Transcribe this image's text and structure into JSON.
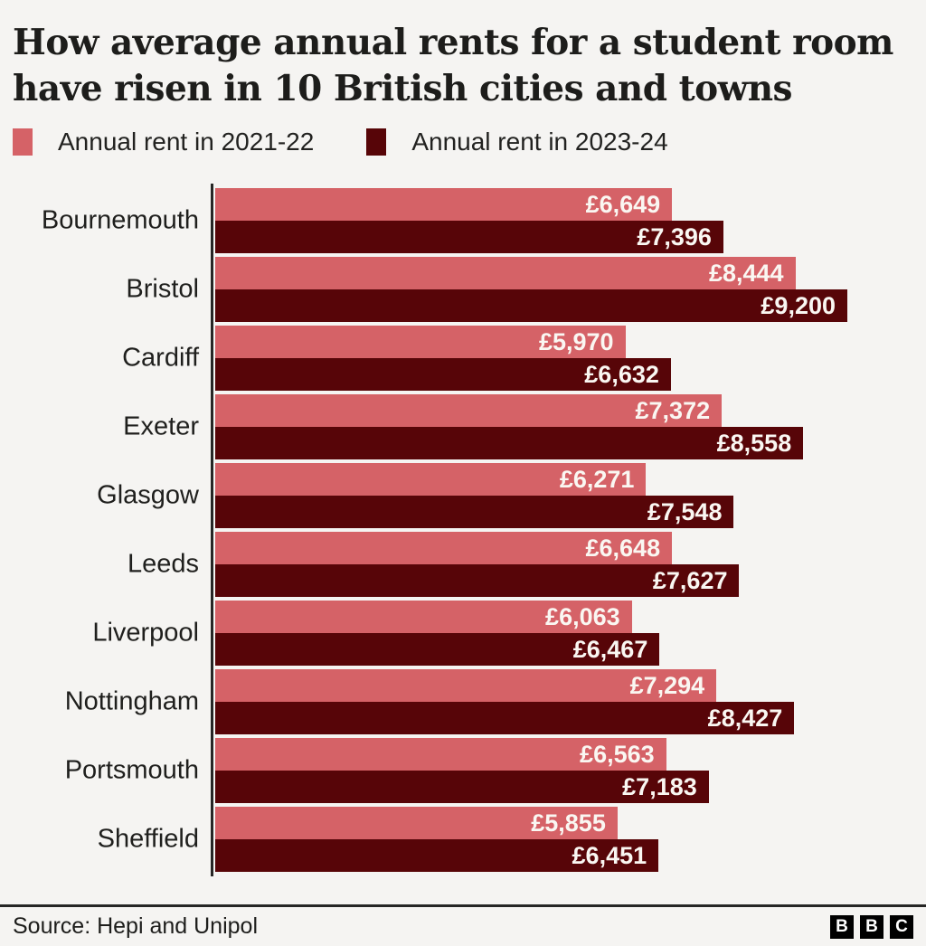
{
  "header": {
    "title_line1": "How average annual rents for a student room",
    "title_line2": "have risen in 10 British cities and towns"
  },
  "legend": {
    "items": [
      {
        "label": "Annual rent in 2021-22",
        "color": "#d56267"
      },
      {
        "label": "Annual rent in 2023-24",
        "color": "#570508"
      }
    ]
  },
  "chart_data": {
    "type": "bar",
    "orientation": "horizontal",
    "title": "How average annual rents for a student room have risen in 10 British cities and towns",
    "categories": [
      "Bournemouth",
      "Bristol",
      "Cardiff",
      "Exeter",
      "Glasgow",
      "Leeds",
      "Liverpool",
      "Nottingham",
      "Portsmouth",
      "Sheffield"
    ],
    "series": [
      {
        "name": "Annual rent in 2021-22",
        "color": "#d56267",
        "values": [
          6649,
          8444,
          5970,
          7372,
          6271,
          6648,
          6063,
          7294,
          6563,
          5855
        ],
        "labels": [
          "£6,649",
          "£8,444",
          "£5,970",
          "£7,372",
          "£6,271",
          "£6,648",
          "£6,063",
          "£7,294",
          "£6,563",
          "£5,855"
        ]
      },
      {
        "name": "Annual rent in 2023-24",
        "color": "#570508",
        "values": [
          7396,
          9200,
          6632,
          8558,
          7548,
          7627,
          6467,
          8427,
          7183,
          6451
        ],
        "labels": [
          "£7,396",
          "£9,200",
          "£6,632",
          "£8,558",
          "£7,548",
          "£7,627",
          "£6,467",
          "£8,427",
          "£7,183",
          "£6,451"
        ]
      }
    ],
    "xlim": [
      0,
      9200
    ],
    "value_prefix": "£",
    "grid": false,
    "legend_position": "top",
    "xlabel": "",
    "ylabel": ""
  },
  "footer": {
    "source": "Source: Hepi and Unipol",
    "logo_letters": [
      "B",
      "B",
      "C"
    ]
  },
  "colors": {
    "background": "#f5f4f2",
    "text": "#1d1d1b",
    "axis": "#262625",
    "bar_value_text": "#faf7f2",
    "series_2021_22": "#d56267",
    "series_2023_24": "#570508"
  }
}
